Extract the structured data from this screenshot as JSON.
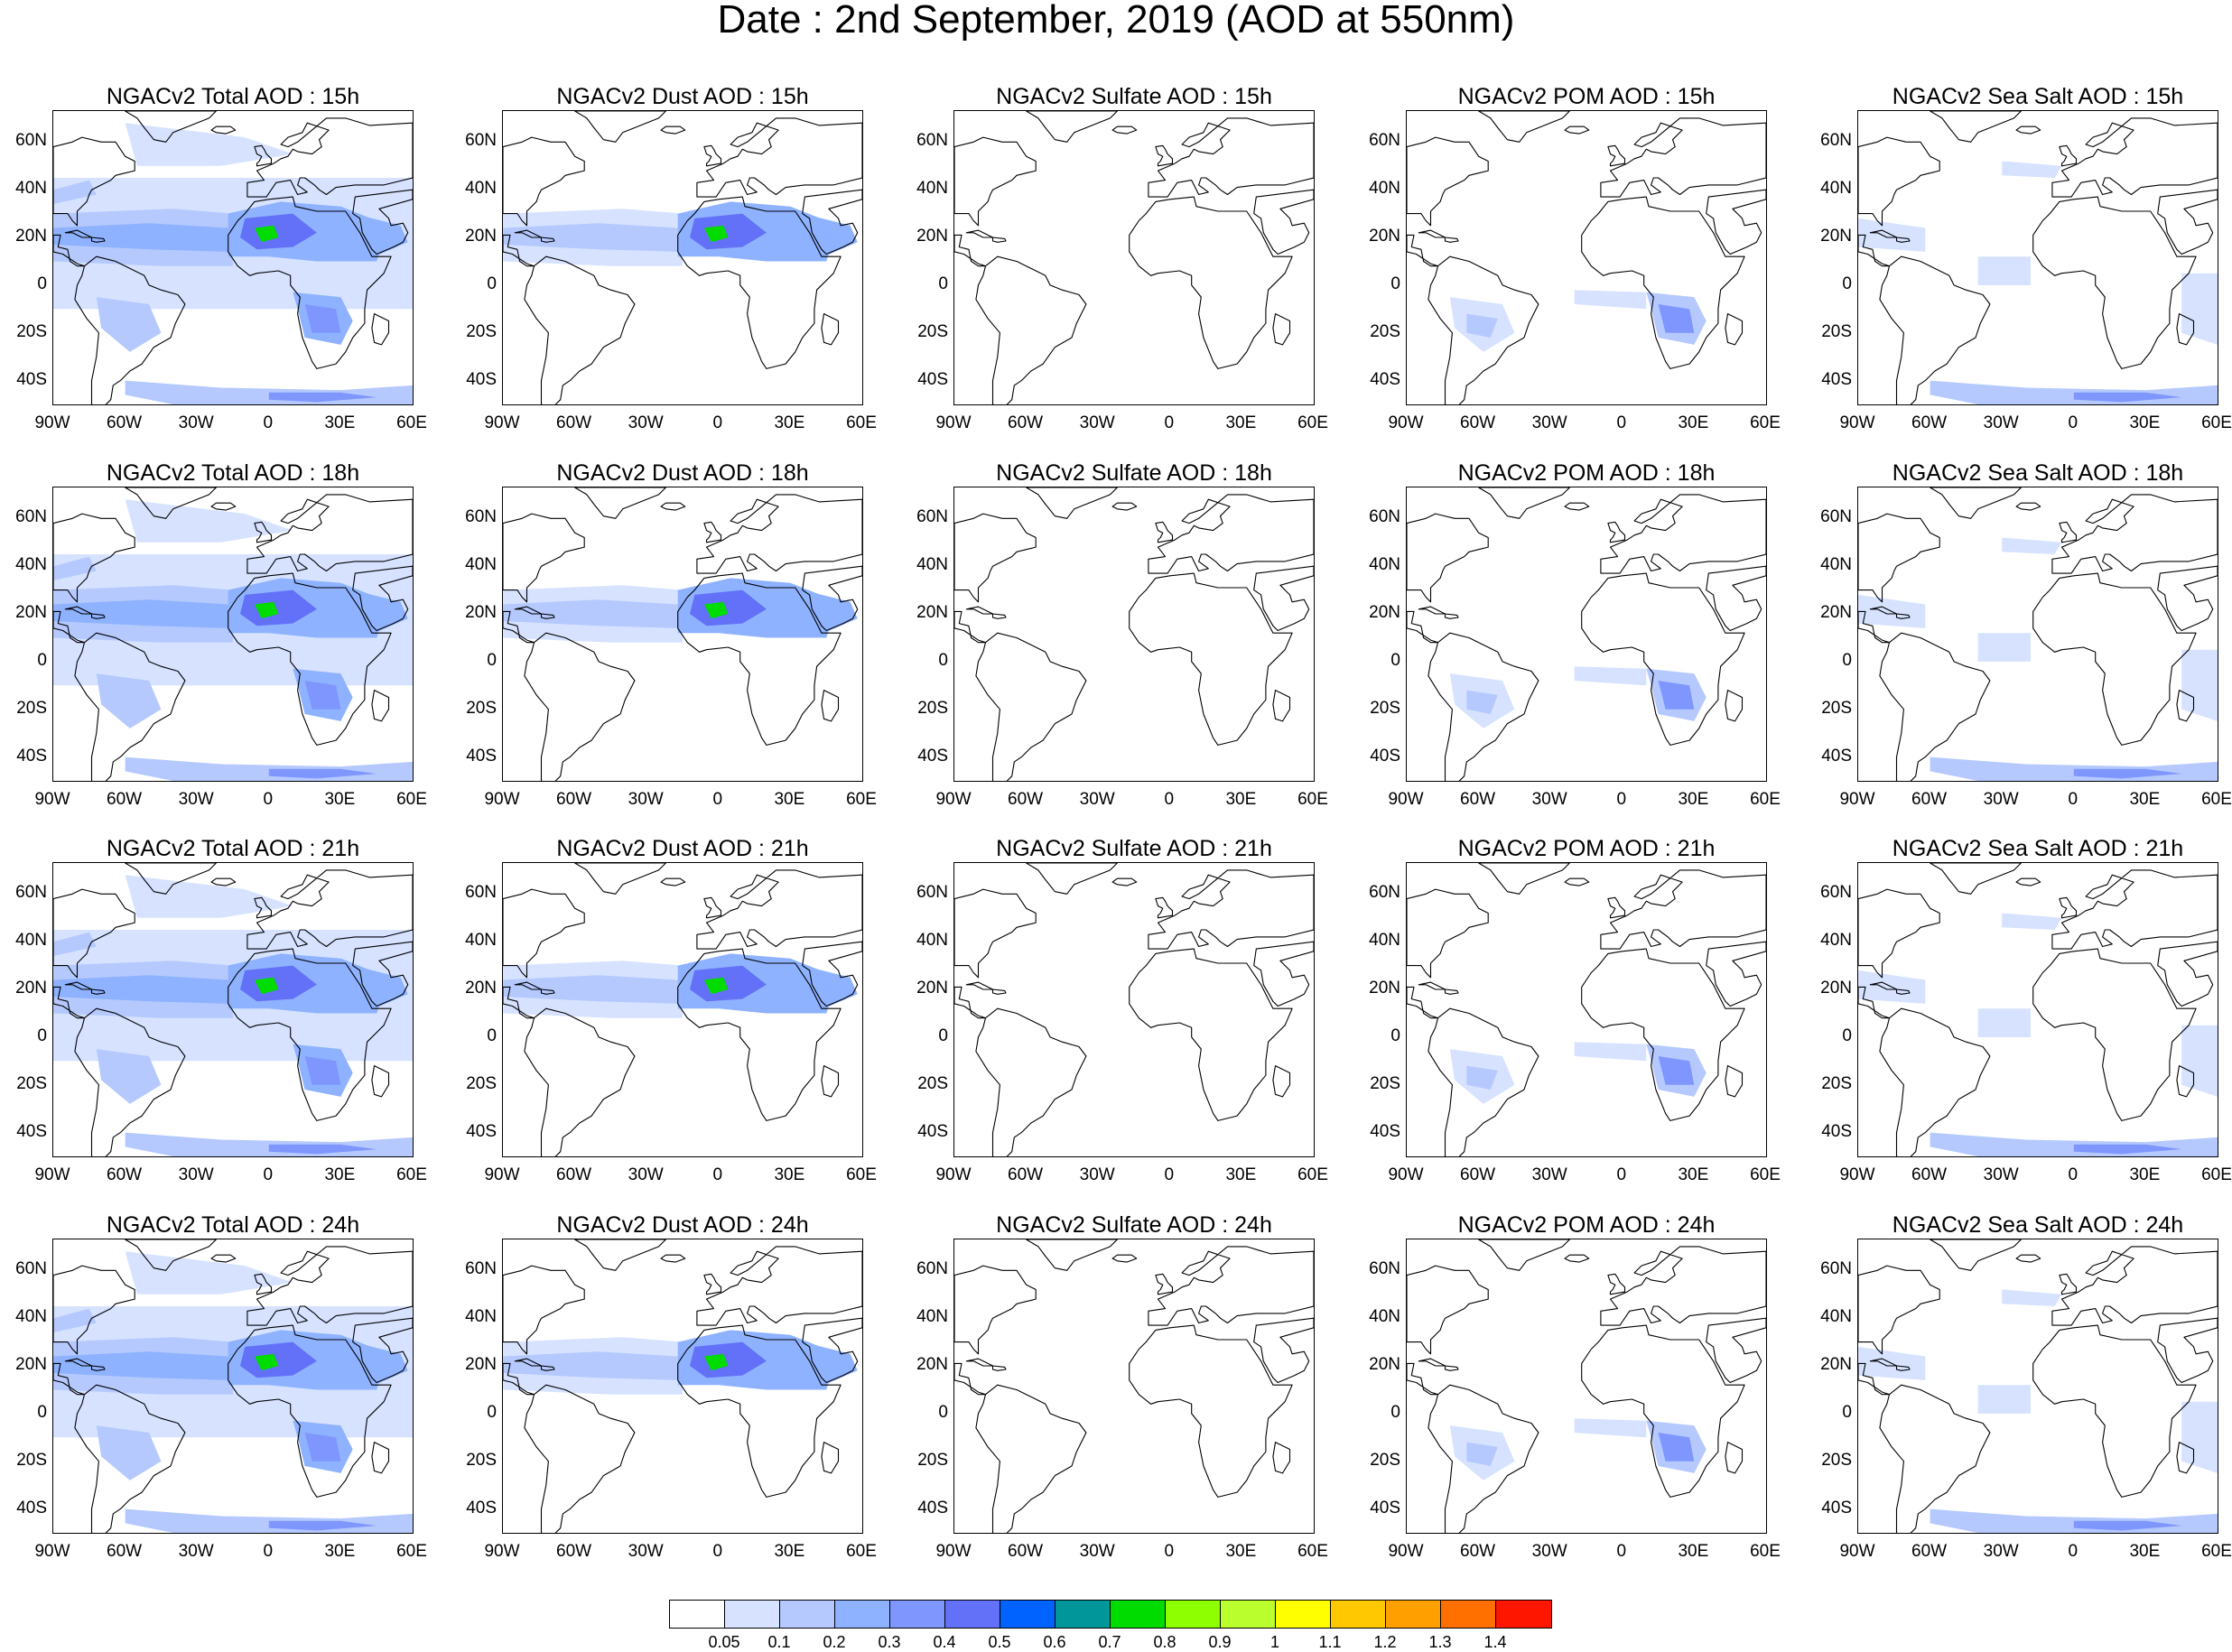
{
  "title": "Date : 2nd September, 2019 (AOD at 550nm)",
  "hours": [
    "15h",
    "18h",
    "21h",
    "24h"
  ],
  "species": [
    {
      "key": "total",
      "prefix": "NGACv2 Total AOD"
    },
    {
      "key": "dust",
      "prefix": "NGACv2 Dust AOD"
    },
    {
      "key": "sulfate",
      "prefix": "NGACv2 Sulfate AOD"
    },
    {
      "key": "pom",
      "prefix": "NGACv2 POM AOD"
    },
    {
      "key": "seasalt",
      "prefix": "NGACv2 Sea Salt AOD"
    }
  ],
  "panel_titles": [
    [
      "NGACv2 Total AOD : 15h",
      "NGACv2 Dust AOD : 15h",
      "NGACv2 Sulfate AOD : 15h",
      "NGACv2 POM AOD : 15h",
      "NGACv2 Sea Salt AOD : 15h"
    ],
    [
      "NGACv2 Total AOD : 18h",
      "NGACv2 Dust AOD : 18h",
      "NGACv2 Sulfate AOD : 18h",
      "NGACv2 POM AOD : 18h",
      "NGACv2 Sea Salt AOD : 18h"
    ],
    [
      "NGACv2 Total AOD : 21h",
      "NGACv2 Dust AOD : 21h",
      "NGACv2 Sulfate AOD : 21h",
      "NGACv2 POM AOD : 21h",
      "NGACv2 Sea Salt AOD : 21h"
    ],
    [
      "NGACv2 Total AOD : 24h",
      "NGACv2 Dust AOD : 24h",
      "NGACv2 Sulfate AOD : 24h",
      "NGACv2 POM AOD : 24h",
      "NGACv2 Sea Salt  AOD : 24h"
    ]
  ],
  "lat_ticks": [
    "60N",
    "40N",
    "20N",
    "0",
    "20S",
    "40S"
  ],
  "lat_values": [
    60,
    40,
    20,
    0,
    -20,
    -40
  ],
  "lon_ticks": [
    "90W",
    "60W",
    "30W",
    "0",
    "30E",
    "60E"
  ],
  "lon_values": [
    -90,
    -60,
    -30,
    0,
    30,
    60
  ],
  "map_extent": {
    "lon": [
      -90,
      60
    ],
    "lat": [
      -50,
      73
    ]
  },
  "colorbar": {
    "colors": [
      "#ffffff",
      "#d6e2ff",
      "#b5c9ff",
      "#8eb2ff",
      "#7f96ff",
      "#6370f8",
      "#0062ff",
      "#00969a",
      "#00dc00",
      "#8dff00",
      "#baff2d",
      "#ffff00",
      "#ffc800",
      "#ffa000",
      "#ff7000",
      "#ff1600"
    ],
    "labels": [
      "0.05",
      "0.1",
      "0.2",
      "0.3",
      "0.4",
      "0.5",
      "0.6",
      "0.7",
      "0.8",
      "0.9",
      "1",
      "1.1",
      "1.2",
      "1.3",
      "1.4"
    ]
  }
}
